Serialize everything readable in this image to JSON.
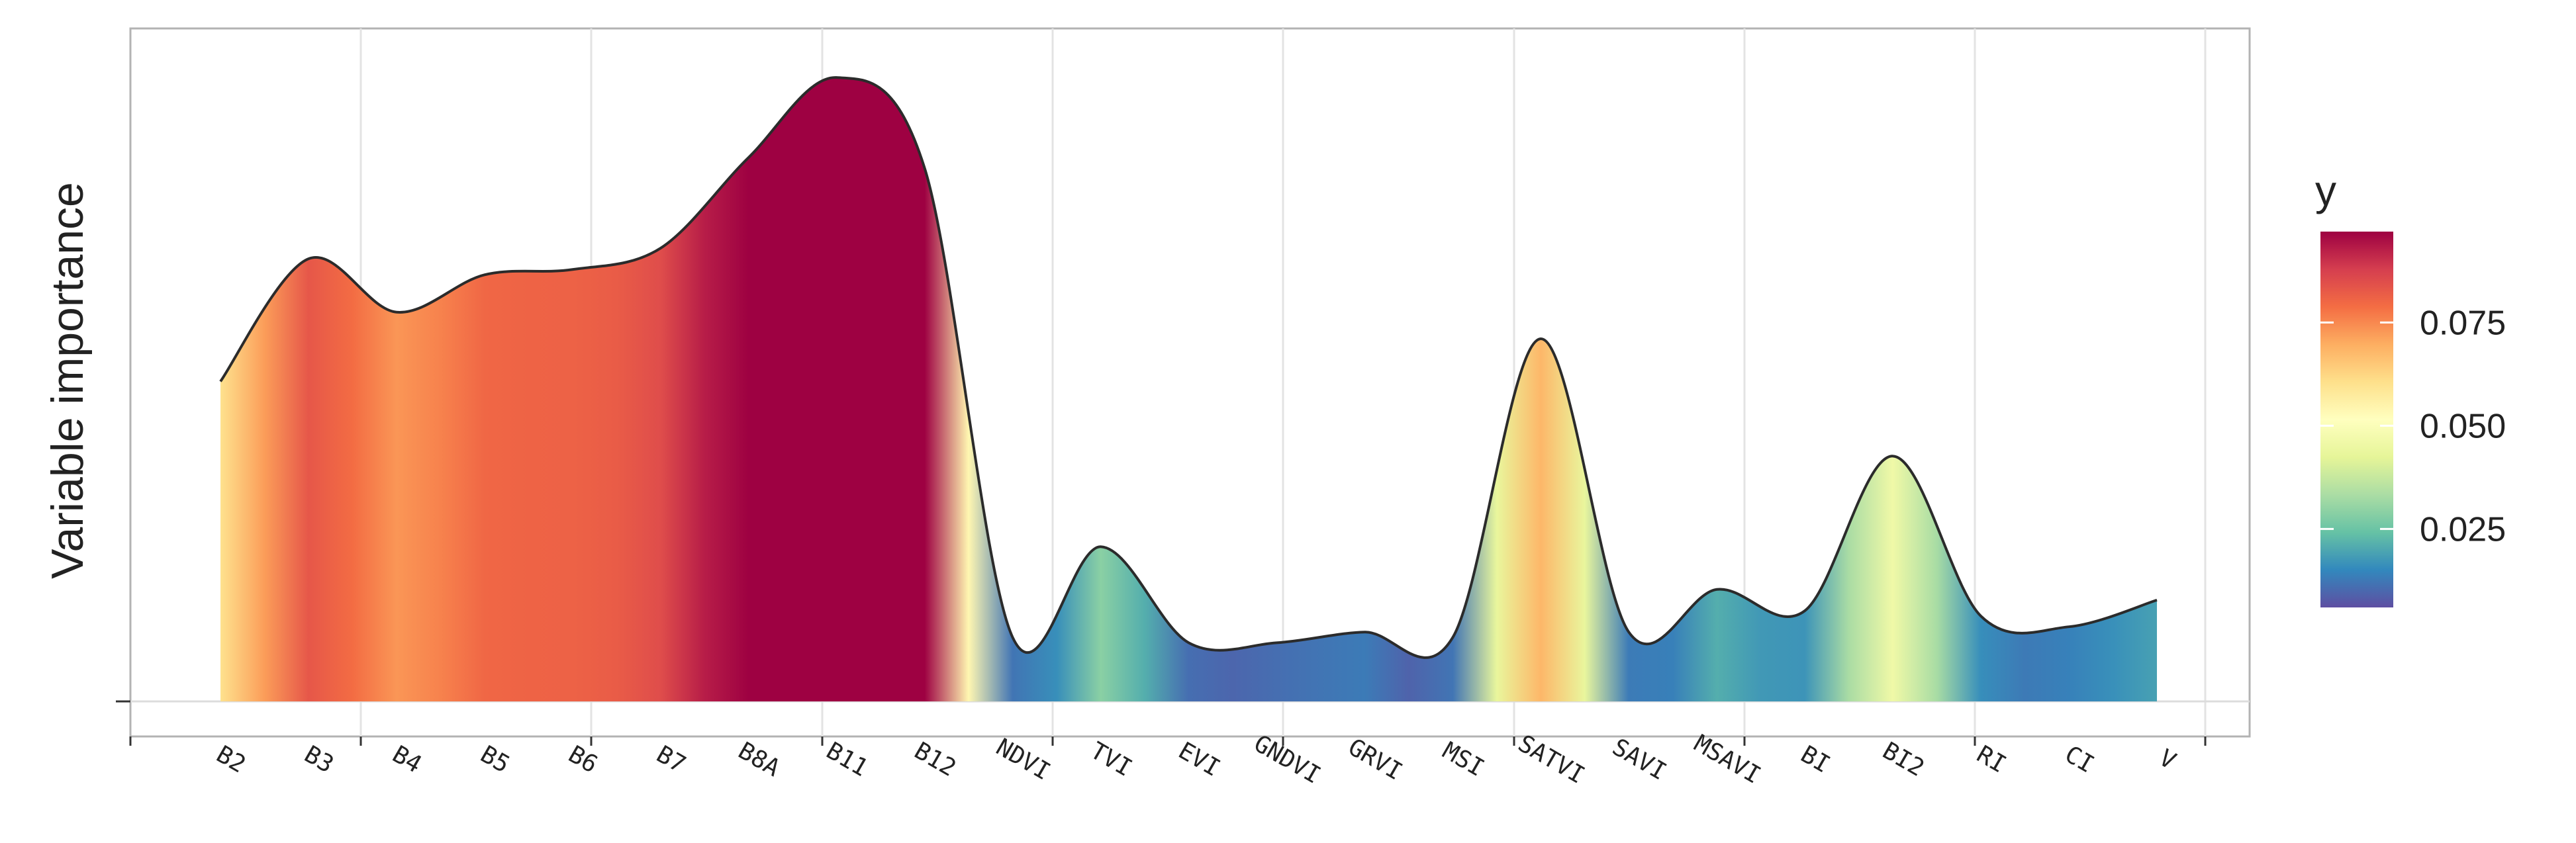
{
  "chart_data": {
    "type": "area",
    "title": "",
    "xlabel": "",
    "ylabel": "Variable importance",
    "categories": [
      "B2",
      "B3",
      "B4",
      "B5",
      "B6",
      "B7",
      "B8A",
      "B11",
      "B12",
      "NDVI",
      "TVI",
      "EVI",
      "GNDVI",
      "GRVI",
      "MSI",
      "SATVI",
      "SAVI",
      "MSAVI",
      "BI",
      "BI2",
      "RI",
      "CI",
      "V"
    ],
    "values": [
      0.06,
      0.083,
      0.073,
      0.08,
      0.081,
      0.085,
      0.102,
      0.117,
      0.1,
      0.012,
      0.029,
      0.011,
      0.011,
      0.013,
      0.012,
      0.068,
      0.013,
      0.021,
      0.017,
      0.046,
      0.016,
      0.014,
      0.019
    ],
    "ylim": [
      0.0,
      0.12
    ],
    "y_ticks_labeled": false,
    "grid": true,
    "curve": "smoothed spline",
    "fill": "gradient colored by y (Spectral palette)",
    "legend": {
      "title": "y",
      "position": "right",
      "ticks": [
        "0.025",
        "0.050",
        "0.075"
      ],
      "tick_values": [
        0.025,
        0.05,
        0.075
      ],
      "range": [
        0.006,
        0.097
      ],
      "colors": [
        "#5E4FA2",
        "#3288BD",
        "#66C2A5",
        "#ABDDA4",
        "#E6F598",
        "#FFFFBF",
        "#FEE08B",
        "#FDAE61",
        "#F46D43",
        "#D53E4F",
        "#9E0142"
      ]
    }
  }
}
